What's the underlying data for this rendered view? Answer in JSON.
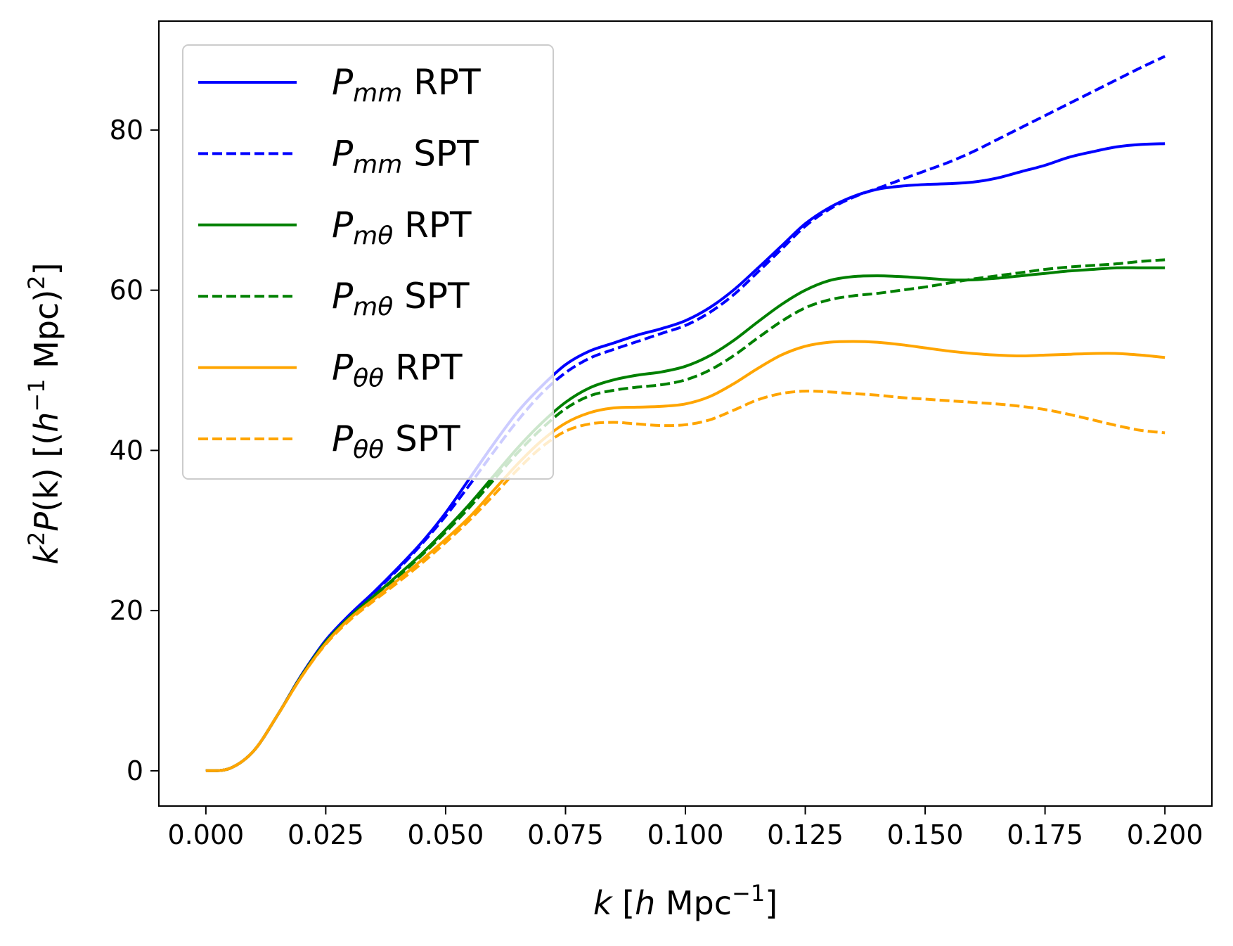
{
  "chart_data": {
    "type": "line",
    "title": "",
    "xlabel": {
      "main": "k",
      "bracket_open": "[",
      "h": "h",
      "unit": "Mpc",
      "exp": "−1",
      "bracket_close": "]"
    },
    "ylabel": {
      "k": "k",
      "k_exp": "2",
      "P": "P",
      "arg": "(k)",
      "bracket_open": "[(",
      "h": "h",
      "h_exp": "−1",
      "unit": "Mpc)",
      "sq": "2",
      "bracket_close": "]"
    },
    "xlim": [
      -0.0098,
      0.2098
    ],
    "ylim": [
      -4.4,
      93.6
    ],
    "xticks": [
      0.0,
      0.025,
      0.05,
      0.075,
      0.1,
      0.125,
      0.15,
      0.175,
      0.2
    ],
    "xtick_labels": [
      "0.000",
      "0.025",
      "0.050",
      "0.075",
      "0.100",
      "0.125",
      "0.150",
      "0.175",
      "0.200"
    ],
    "yticks": [
      0,
      20,
      40,
      60,
      80
    ],
    "ytick_labels": [
      "0",
      "20",
      "40",
      "60",
      "80"
    ],
    "legend_position": "upper-left",
    "series": [
      {
        "name": "P_mm RPT",
        "sym": "P",
        "sub": "mm",
        "tag": "RPT",
        "color": "#0000ff",
        "dash": false,
        "x": [
          0,
          0.005,
          0.01,
          0.015,
          0.02,
          0.025,
          0.03,
          0.035,
          0.04,
          0.045,
          0.05,
          0.055,
          0.06,
          0.065,
          0.07,
          0.075,
          0.08,
          0.085,
          0.09,
          0.095,
          0.1,
          0.105,
          0.11,
          0.115,
          0.12,
          0.125,
          0.13,
          0.135,
          0.14,
          0.145,
          0.15,
          0.155,
          0.16,
          0.165,
          0.17,
          0.175,
          0.18,
          0.185,
          0.19,
          0.195,
          0.2
        ],
        "y": [
          0,
          0.3,
          2.5,
          7.0,
          12.0,
          16.3,
          19.5,
          22.3,
          25.3,
          28.5,
          32.2,
          36.5,
          40.8,
          44.8,
          48.0,
          50.7,
          52.4,
          53.4,
          54.4,
          55.2,
          56.2,
          57.8,
          60.0,
          62.7,
          65.5,
          68.3,
          70.3,
          71.7,
          72.6,
          73.0,
          73.2,
          73.3,
          73.5,
          74.0,
          74.8,
          75.6,
          76.6,
          77.3,
          77.9,
          78.2,
          78.3
        ]
      },
      {
        "name": "P_mm SPT",
        "sym": "P",
        "sub": "mm",
        "tag": "SPT",
        "color": "#0000ff",
        "dash": true,
        "x": [
          0,
          0.005,
          0.01,
          0.015,
          0.02,
          0.025,
          0.03,
          0.035,
          0.04,
          0.045,
          0.05,
          0.055,
          0.06,
          0.065,
          0.07,
          0.075,
          0.08,
          0.085,
          0.09,
          0.095,
          0.1,
          0.105,
          0.11,
          0.115,
          0.12,
          0.125,
          0.13,
          0.135,
          0.14,
          0.145,
          0.15,
          0.155,
          0.16,
          0.165,
          0.17,
          0.175,
          0.18,
          0.185,
          0.19,
          0.195,
          0.2
        ],
        "y": [
          0,
          0.3,
          2.5,
          7.0,
          12.0,
          16.2,
          19.4,
          22.2,
          25.1,
          28.3,
          31.8,
          35.7,
          39.8,
          43.7,
          47.1,
          49.7,
          51.5,
          52.6,
          53.6,
          54.6,
          55.6,
          57.2,
          59.4,
          62.2,
          65.1,
          68.0,
          70.1,
          71.6,
          72.7,
          73.8,
          74.9,
          76.0,
          77.3,
          78.8,
          80.3,
          81.8,
          83.3,
          84.8,
          86.3,
          87.8,
          89.2
        ]
      },
      {
        "name": "P_mθ RPT",
        "sym": "P",
        "sub": "mθ",
        "tag": "RPT",
        "color": "#008000",
        "dash": false,
        "x": [
          0,
          0.005,
          0.01,
          0.015,
          0.02,
          0.025,
          0.03,
          0.035,
          0.04,
          0.045,
          0.05,
          0.055,
          0.06,
          0.065,
          0.07,
          0.075,
          0.08,
          0.085,
          0.09,
          0.095,
          0.1,
          0.105,
          0.11,
          0.115,
          0.12,
          0.125,
          0.13,
          0.135,
          0.14,
          0.145,
          0.15,
          0.155,
          0.16,
          0.165,
          0.17,
          0.175,
          0.18,
          0.185,
          0.19,
          0.195,
          0.2
        ],
        "y": [
          0,
          0.3,
          2.5,
          7.0,
          11.9,
          16.1,
          19.2,
          21.8,
          24.4,
          27.1,
          30.1,
          33.3,
          36.8,
          40.3,
          43.4,
          46.0,
          47.8,
          48.8,
          49.4,
          49.8,
          50.5,
          51.8,
          53.7,
          56.0,
          58.2,
          60.0,
          61.2,
          61.7,
          61.8,
          61.7,
          61.5,
          61.3,
          61.3,
          61.5,
          61.8,
          62.1,
          62.4,
          62.6,
          62.8,
          62.8,
          62.8
        ]
      },
      {
        "name": "P_mθ SPT",
        "sym": "P",
        "sub": "mθ",
        "tag": "SPT",
        "color": "#008000",
        "dash": true,
        "x": [
          0,
          0.005,
          0.01,
          0.015,
          0.02,
          0.025,
          0.03,
          0.035,
          0.04,
          0.045,
          0.05,
          0.055,
          0.06,
          0.065,
          0.07,
          0.075,
          0.08,
          0.085,
          0.09,
          0.095,
          0.1,
          0.105,
          0.11,
          0.115,
          0.12,
          0.125,
          0.13,
          0.135,
          0.14,
          0.145,
          0.15,
          0.155,
          0.16,
          0.165,
          0.17,
          0.175,
          0.18,
          0.185,
          0.19,
          0.195,
          0.2
        ],
        "y": [
          0,
          0.3,
          2.5,
          7.0,
          11.9,
          16.0,
          19.1,
          21.7,
          24.2,
          26.9,
          29.8,
          32.9,
          36.3,
          39.7,
          42.7,
          45.2,
          46.8,
          47.5,
          47.9,
          48.2,
          48.8,
          50.0,
          51.8,
          54.0,
          56.1,
          57.8,
          58.8,
          59.3,
          59.6,
          60.0,
          60.4,
          60.9,
          61.4,
          61.8,
          62.2,
          62.6,
          62.9,
          63.1,
          63.3,
          63.6,
          63.8
        ]
      },
      {
        "name": "P_θθ RPT",
        "sym": "P",
        "sub": "θθ",
        "tag": "RPT",
        "color": "#ffa500",
        "dash": false,
        "x": [
          0,
          0.005,
          0.01,
          0.015,
          0.02,
          0.025,
          0.03,
          0.035,
          0.04,
          0.045,
          0.05,
          0.055,
          0.06,
          0.065,
          0.07,
          0.075,
          0.08,
          0.085,
          0.09,
          0.095,
          0.1,
          0.105,
          0.11,
          0.115,
          0.12,
          0.125,
          0.13,
          0.135,
          0.14,
          0.145,
          0.15,
          0.155,
          0.16,
          0.165,
          0.17,
          0.175,
          0.18,
          0.185,
          0.19,
          0.195,
          0.2
        ],
        "y": [
          0,
          0.3,
          2.5,
          7.0,
          11.8,
          15.9,
          19.0,
          21.4,
          23.8,
          26.3,
          28.9,
          31.7,
          35.0,
          38.3,
          41.2,
          43.4,
          44.7,
          45.3,
          45.4,
          45.5,
          45.8,
          46.7,
          48.3,
          50.2,
          51.9,
          53.0,
          53.5,
          53.6,
          53.5,
          53.2,
          52.8,
          52.4,
          52.1,
          51.9,
          51.8,
          51.9,
          52.0,
          52.1,
          52.1,
          51.9,
          51.6
        ]
      },
      {
        "name": "P_θθ SPT",
        "sym": "P",
        "sub": "θθ",
        "tag": "SPT",
        "color": "#ffa500",
        "dash": true,
        "x": [
          0,
          0.005,
          0.01,
          0.015,
          0.02,
          0.025,
          0.03,
          0.035,
          0.04,
          0.045,
          0.05,
          0.055,
          0.06,
          0.065,
          0.07,
          0.075,
          0.08,
          0.085,
          0.09,
          0.095,
          0.1,
          0.105,
          0.11,
          0.115,
          0.12,
          0.125,
          0.13,
          0.135,
          0.14,
          0.145,
          0.15,
          0.155,
          0.16,
          0.165,
          0.17,
          0.175,
          0.18,
          0.185,
          0.19,
          0.195,
          0.2
        ],
        "y": [
          0,
          0.3,
          2.5,
          7.0,
          11.8,
          15.8,
          18.8,
          21.2,
          23.5,
          25.9,
          28.5,
          31.3,
          34.4,
          37.6,
          40.4,
          42.4,
          43.3,
          43.5,
          43.3,
          43.1,
          43.2,
          43.8,
          45.0,
          46.3,
          47.1,
          47.4,
          47.3,
          47.1,
          46.9,
          46.6,
          46.4,
          46.2,
          46.0,
          45.8,
          45.5,
          45.1,
          44.5,
          43.8,
          43.1,
          42.5,
          42.2
        ]
      }
    ]
  }
}
